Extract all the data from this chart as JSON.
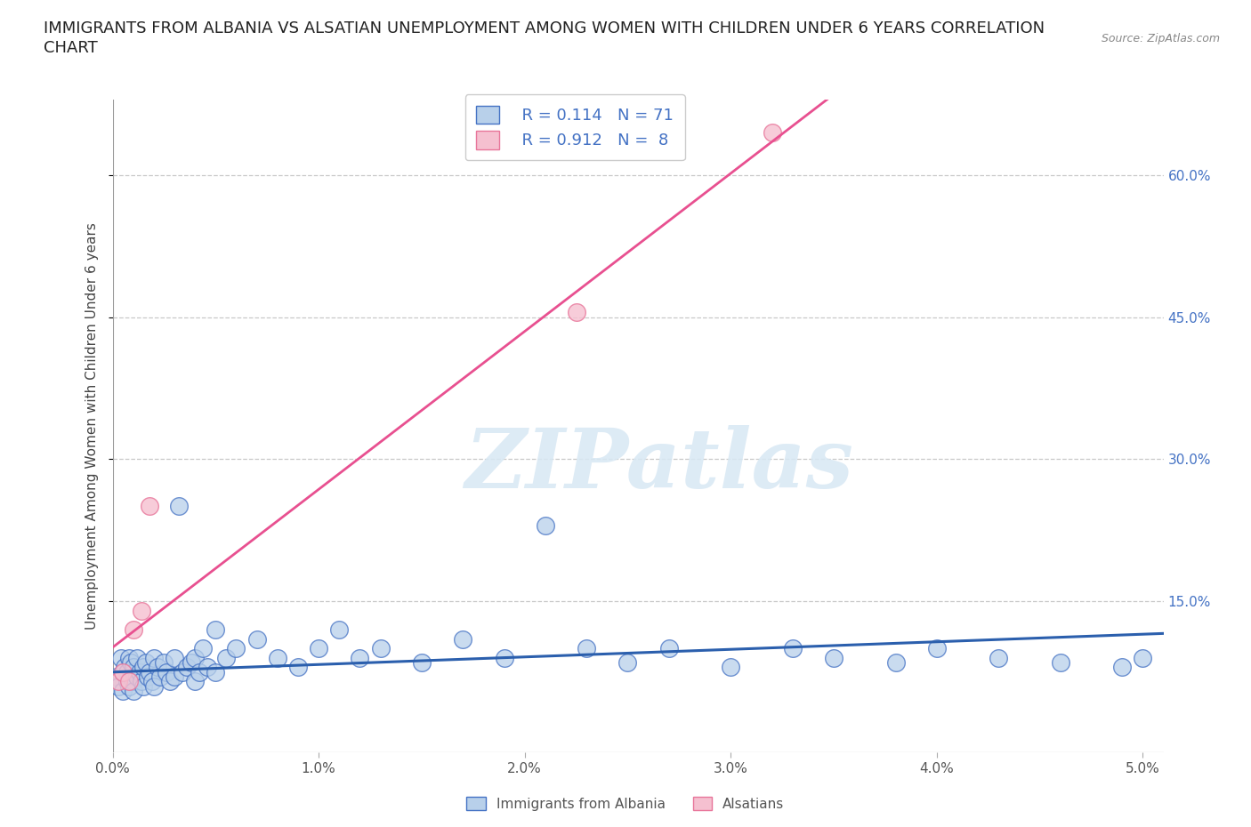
{
  "title_line1": "IMMIGRANTS FROM ALBANIA VS ALSATIAN UNEMPLOYMENT AMONG WOMEN WITH CHILDREN UNDER 6 YEARS CORRELATION",
  "title_line2": "CHART",
  "source_text": "Source: ZipAtlas.com",
  "ylabel": "Unemployment Among Women with Children Under 6 years",
  "xlim": [
    0.0,
    0.051
  ],
  "ylim": [
    -0.01,
    0.68
  ],
  "xticks": [
    0.0,
    0.01,
    0.02,
    0.03,
    0.04,
    0.05
  ],
  "xticklabels": [
    "0.0%",
    "1.0%",
    "2.0%",
    "3.0%",
    "4.0%",
    "5.0%"
  ],
  "yticks_right": [
    0.15,
    0.3,
    0.45,
    0.6
  ],
  "ytick_right_labels": [
    "15.0%",
    "30.0%",
    "45.0%",
    "60.0%"
  ],
  "watermark": "ZIPatlas",
  "blue_fill": "#b8d0ea",
  "pink_fill": "#f5c0d0",
  "blue_edge": "#4472c4",
  "pink_edge": "#e8759a",
  "blue_line_color": "#2b5fad",
  "pink_line_color": "#e85090",
  "legend_label1": "Immigrants from Albania",
  "legend_label2": "Alsatians",
  "grid_color": "#c8c8c8",
  "background_color": "#ffffff",
  "title_fontsize": 13,
  "axis_label_fontsize": 11,
  "tick_fontsize": 11,
  "albania_x": [
    0.0002,
    0.0003,
    0.0004,
    0.0005,
    0.0005,
    0.0006,
    0.0007,
    0.0007,
    0.0008,
    0.0008,
    0.0009,
    0.0009,
    0.001,
    0.001,
    0.001,
    0.001,
    0.0012,
    0.0012,
    0.0013,
    0.0014,
    0.0015,
    0.0015,
    0.0016,
    0.0017,
    0.0018,
    0.0019,
    0.002,
    0.002,
    0.0022,
    0.0023,
    0.0025,
    0.0026,
    0.0028,
    0.003,
    0.003,
    0.0032,
    0.0034,
    0.0036,
    0.0038,
    0.004,
    0.004,
    0.0042,
    0.0044,
    0.0046,
    0.005,
    0.005,
    0.0055,
    0.006,
    0.007,
    0.008,
    0.009,
    0.01,
    0.011,
    0.012,
    0.013,
    0.015,
    0.017,
    0.019,
    0.021,
    0.023,
    0.025,
    0.027,
    0.03,
    0.033,
    0.035,
    0.038,
    0.04,
    0.043,
    0.046,
    0.049,
    0.05
  ],
  "albania_y": [
    0.07,
    0.06,
    0.09,
    0.075,
    0.055,
    0.08,
    0.065,
    0.075,
    0.06,
    0.09,
    0.07,
    0.085,
    0.065,
    0.075,
    0.055,
    0.08,
    0.07,
    0.09,
    0.075,
    0.065,
    0.08,
    0.06,
    0.085,
    0.07,
    0.075,
    0.065,
    0.09,
    0.06,
    0.08,
    0.07,
    0.085,
    0.075,
    0.065,
    0.09,
    0.07,
    0.25,
    0.075,
    0.08,
    0.085,
    0.09,
    0.065,
    0.075,
    0.1,
    0.08,
    0.075,
    0.12,
    0.09,
    0.1,
    0.11,
    0.09,
    0.08,
    0.1,
    0.12,
    0.09,
    0.1,
    0.085,
    0.11,
    0.09,
    0.23,
    0.1,
    0.085,
    0.1,
    0.08,
    0.1,
    0.09,
    0.085,
    0.1,
    0.09,
    0.085,
    0.08,
    0.09
  ],
  "alsatian_x": [
    0.0003,
    0.0005,
    0.0008,
    0.001,
    0.0014,
    0.0018,
    0.0225,
    0.032
  ],
  "alsatian_y": [
    0.065,
    0.075,
    0.065,
    0.12,
    0.14,
    0.25,
    0.455,
    0.645
  ]
}
